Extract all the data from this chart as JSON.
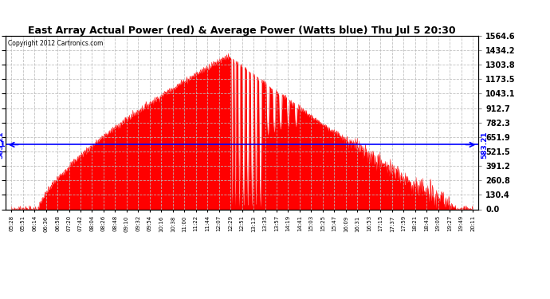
{
  "title": "East Array Actual Power (red) & Average Power (Watts blue) Thu Jul 5 20:30",
  "copyright": "Copyright 2012 Cartronics.com",
  "avg_line_y": 583.21,
  "y_max": 1564.6,
  "y_ticks": [
    0.0,
    130.4,
    260.8,
    391.2,
    521.5,
    651.9,
    782.3,
    912.7,
    1043.1,
    1173.5,
    1303.8,
    1434.2,
    1564.6
  ],
  "y_tick_labels": [
    "0.0",
    "130.4",
    "260.8",
    "391.2",
    "521.5",
    "651.9",
    "782.3",
    "912.7",
    "1043.1",
    "1173.5",
    "1303.8",
    "1434.2",
    "1564.6"
  ],
  "bg_color": "#ffffff",
  "fill_color": "#ff0000",
  "line_color": "#ff0000",
  "avg_color": "#0000ff",
  "grid_color": "#bbbbbb",
  "title_color": "#000000",
  "copyright_color": "#000000",
  "x_tick_labels": [
    "05:28",
    "05:51",
    "06:14",
    "06:36",
    "06:58",
    "07:20",
    "07:42",
    "08:04",
    "08:26",
    "08:48",
    "09:10",
    "09:32",
    "09:54",
    "10:16",
    "10:38",
    "11:00",
    "11:22",
    "11:44",
    "12:07",
    "12:29",
    "12:51",
    "13:13",
    "13:35",
    "13:57",
    "14:19",
    "14:41",
    "15:03",
    "15:25",
    "15:47",
    "16:09",
    "16:31",
    "16:53",
    "17:15",
    "17:37",
    "17:59",
    "18:21",
    "18:43",
    "19:05",
    "19:27",
    "19:49",
    "20:11"
  ]
}
